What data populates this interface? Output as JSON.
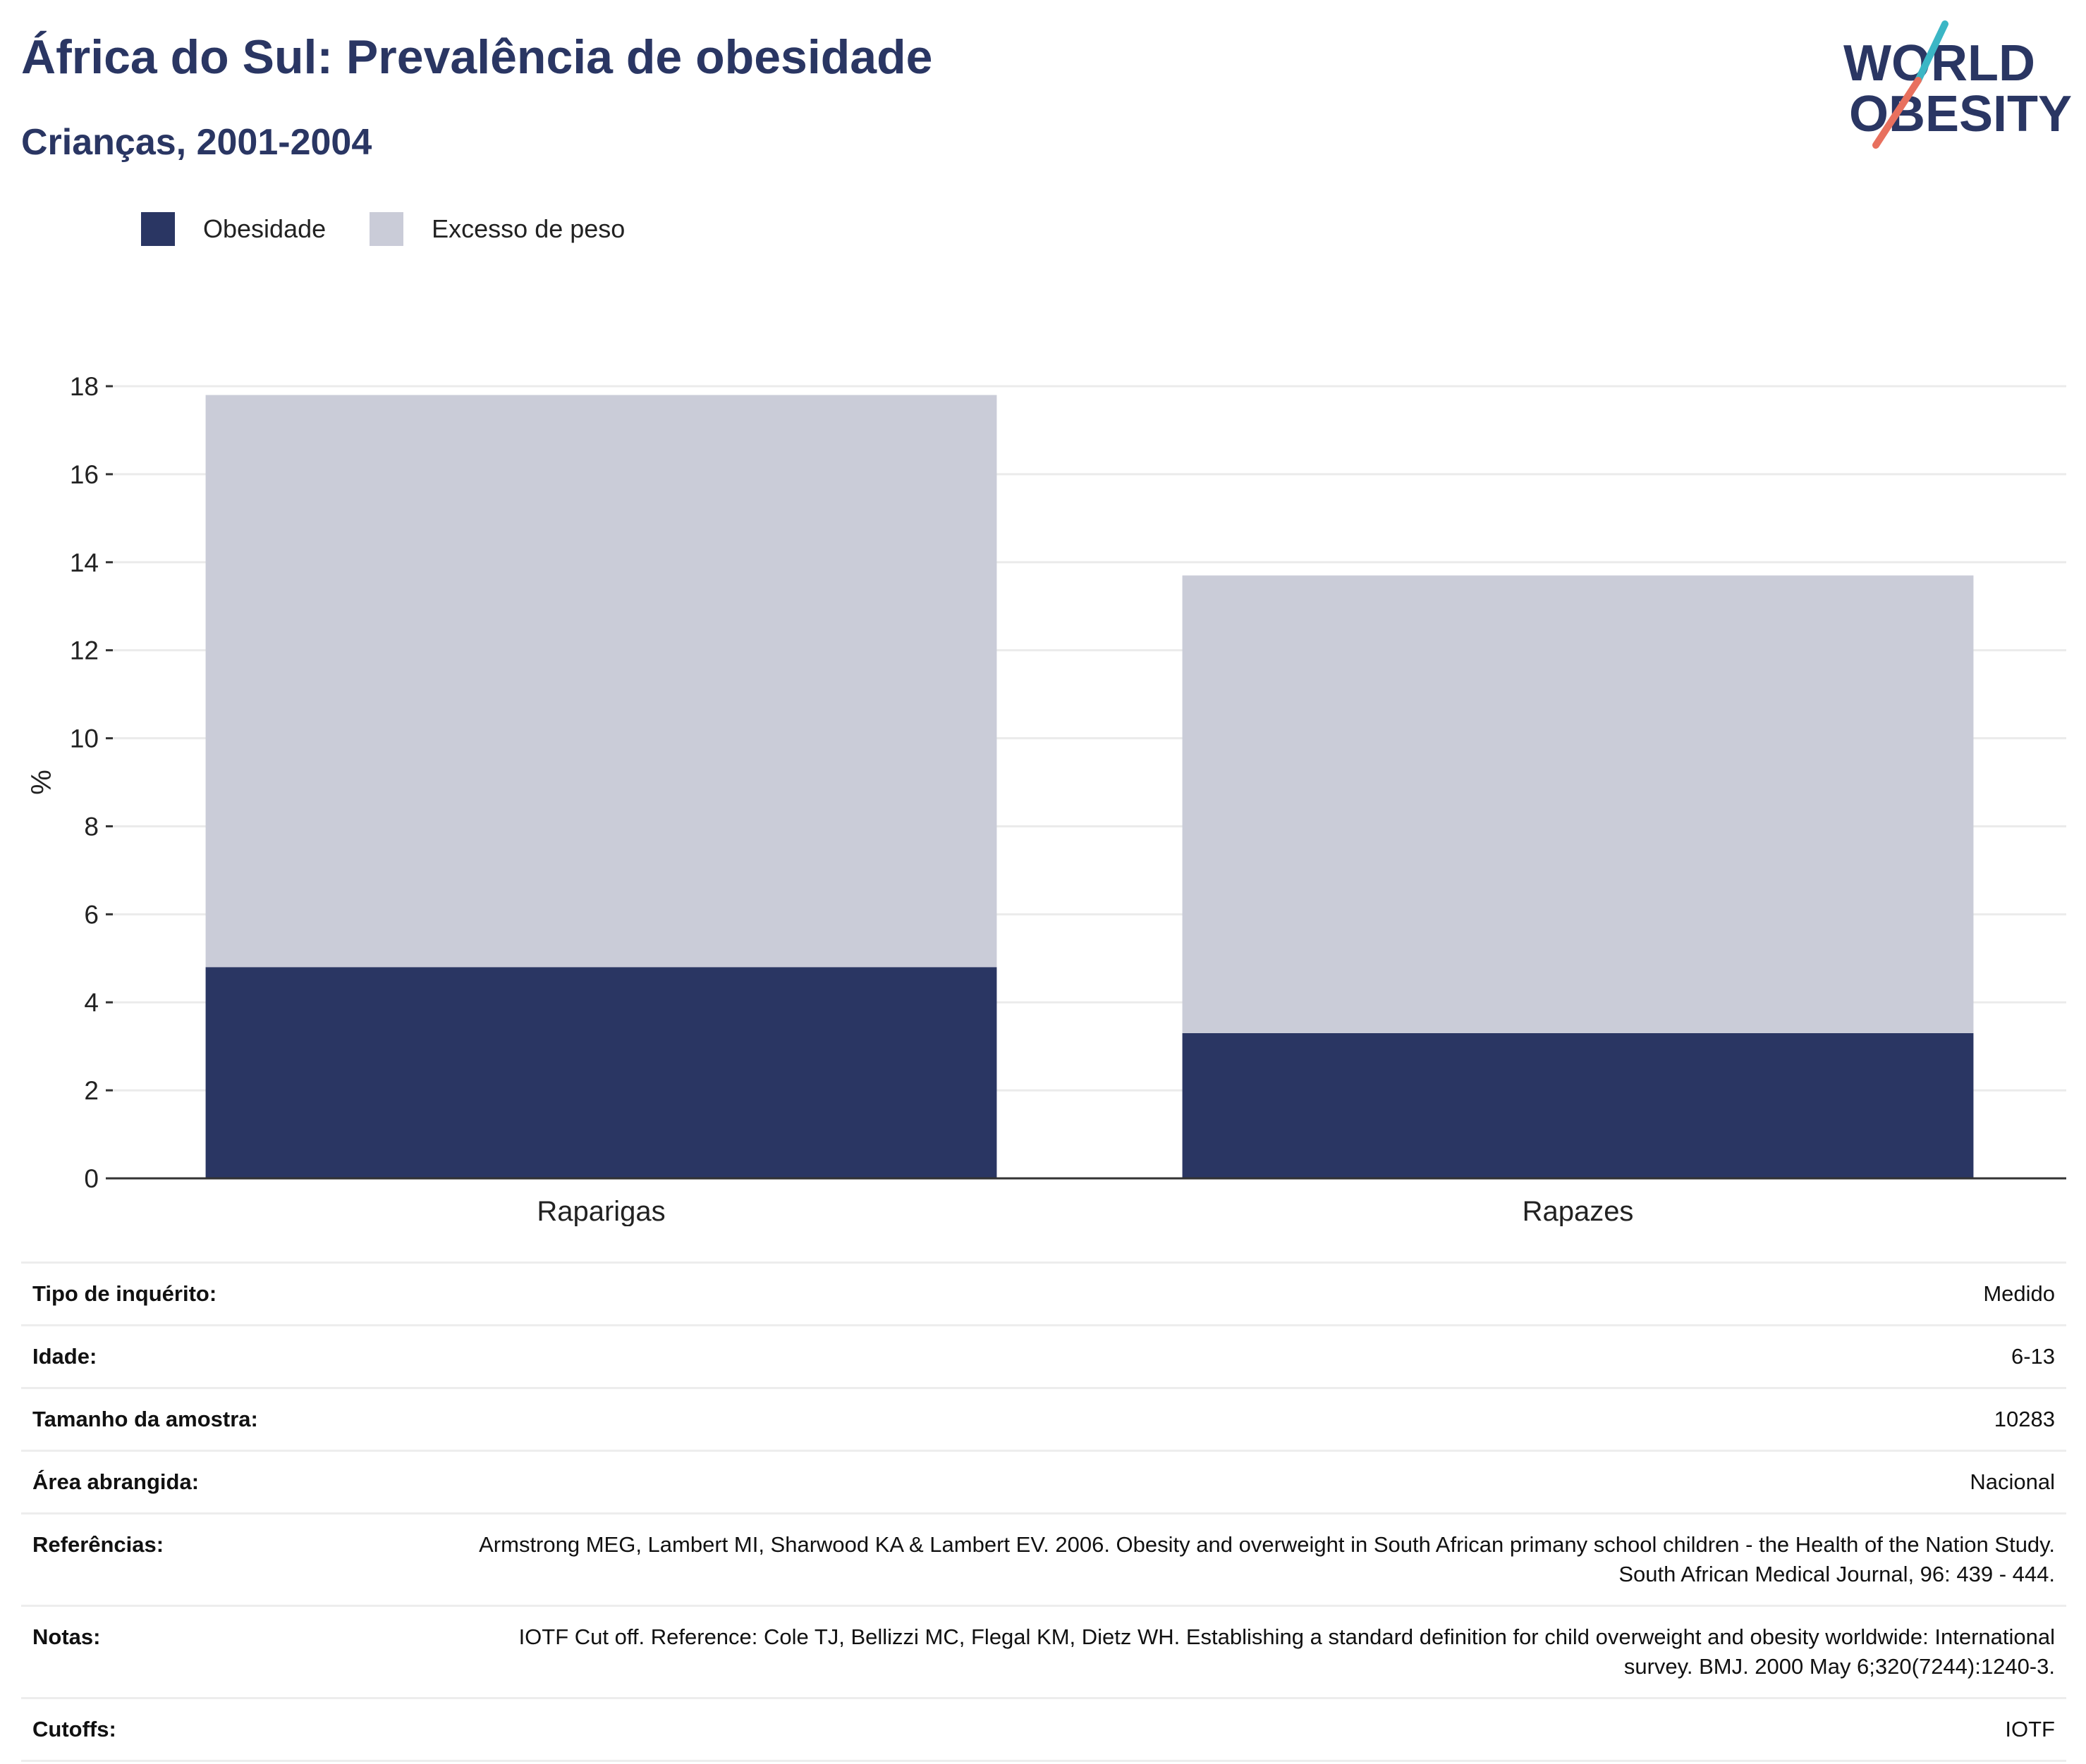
{
  "header": {
    "title": "África do Sul: Prevalência de obesidade",
    "subtitle": "Crianças, 2001-2004"
  },
  "logo": {
    "line1": "WORLD",
    "line2": "OBESITY",
    "accent_teal": "#3bb6c5",
    "accent_coral": "#e8705e"
  },
  "colors": {
    "obesity": "#2a3663",
    "overweight": "#caccd8",
    "grid": "#ebebeb",
    "axis": "#333333"
  },
  "legend": [
    {
      "label": "Obesidade",
      "color": "#2a3663"
    },
    {
      "label": "Excesso de peso",
      "color": "#caccd8"
    }
  ],
  "chart_data": {
    "type": "bar",
    "stacked": true,
    "categories": [
      "Raparigas",
      "Rapazes"
    ],
    "series": [
      {
        "name": "Obesidade",
        "values": [
          4.8,
          3.3
        ]
      },
      {
        "name": "Excesso de peso",
        "values": [
          13.0,
          10.4
        ]
      }
    ],
    "ylabel": "%",
    "ylim": [
      0,
      18
    ],
    "yticks": [
      "0",
      "2",
      "4",
      "6",
      "8",
      "10",
      "12",
      "14",
      "16",
      "18"
    ],
    "grid": true,
    "legend_position": "top-left"
  },
  "info": [
    {
      "key": "Tipo de inquérito:",
      "value": "Medido"
    },
    {
      "key": "Idade:",
      "value": "6-13"
    },
    {
      "key": "Tamanho da amostra:",
      "value": "10283"
    },
    {
      "key": "Área abrangida:",
      "value": "Nacional"
    },
    {
      "key": "Referências:",
      "value": "Armstrong MEG, Lambert MI, Sharwood KA & Lambert EV. 2006. Obesity and overweight in South African primany school children - the Health of the Nation Study. South African Medical Journal, 96: 439 - 444."
    },
    {
      "key": "Notas:",
      "value": "IOTF Cut off. Reference: Cole TJ, Bellizzi MC, Flegal KM, Dietz WH. Establishing a standard definition for child overweight and obesity worldwide: International survey. BMJ. 2000 May 6;320(7244):1240-3."
    },
    {
      "key": "Cutoffs:",
      "value": "IOTF"
    }
  ]
}
